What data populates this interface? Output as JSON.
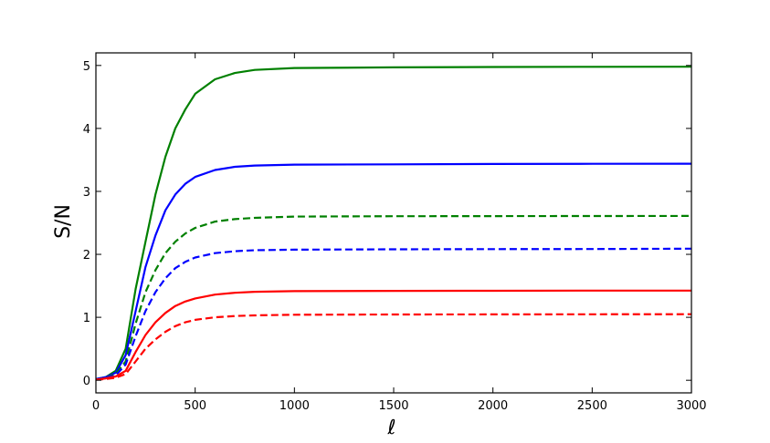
{
  "chart_data": {
    "type": "line",
    "title": "",
    "xlabel": "ℓ",
    "ylabel": "S/N",
    "xlim": [
      0,
      3000
    ],
    "ylim": [
      -0.2,
      5.2
    ],
    "xticks": [
      0,
      500,
      1000,
      1500,
      2000,
      2500,
      3000
    ],
    "yticks": [
      0,
      1,
      2,
      3,
      4,
      5
    ],
    "grid": false,
    "legend": "none",
    "series": [
      {
        "color": "#008000",
        "style": "solid",
        "x": [
          0,
          50,
          100,
          150,
          200,
          250,
          300,
          350,
          400,
          450,
          500,
          600,
          700,
          800,
          1000,
          1500,
          2000,
          2500,
          3000
        ],
        "y": [
          0.02,
          0.05,
          0.15,
          0.5,
          1.45,
          2.2,
          2.95,
          3.55,
          4.0,
          4.3,
          4.55,
          4.78,
          4.88,
          4.93,
          4.96,
          4.97,
          4.975,
          4.978,
          4.98
        ]
      },
      {
        "color": "#0000ff",
        "style": "solid",
        "x": [
          0,
          50,
          100,
          150,
          200,
          250,
          300,
          350,
          400,
          450,
          500,
          600,
          700,
          800,
          1000,
          1500,
          2000,
          2500,
          3000
        ],
        "y": [
          0.02,
          0.05,
          0.12,
          0.4,
          1.1,
          1.8,
          2.3,
          2.7,
          2.95,
          3.12,
          3.23,
          3.34,
          3.39,
          3.41,
          3.425,
          3.43,
          3.435,
          3.438,
          3.44
        ]
      },
      {
        "color": "#008000",
        "style": "dashed",
        "x": [
          0,
          50,
          100,
          150,
          200,
          250,
          300,
          350,
          400,
          450,
          500,
          600,
          700,
          800,
          1000,
          1500,
          2000,
          2500,
          3000
        ],
        "y": [
          0.02,
          0.04,
          0.1,
          0.3,
          0.9,
          1.4,
          1.75,
          2.02,
          2.2,
          2.33,
          2.42,
          2.52,
          2.56,
          2.58,
          2.6,
          2.605,
          2.607,
          2.608,
          2.61
        ]
      },
      {
        "color": "#0000ff",
        "style": "dashed",
        "x": [
          0,
          50,
          100,
          150,
          200,
          250,
          300,
          350,
          400,
          450,
          500,
          600,
          700,
          800,
          1000,
          1500,
          2000,
          2500,
          3000
        ],
        "y": [
          0.02,
          0.04,
          0.08,
          0.25,
          0.7,
          1.1,
          1.4,
          1.62,
          1.78,
          1.88,
          1.95,
          2.02,
          2.05,
          2.065,
          2.075,
          2.08,
          2.083,
          2.085,
          2.09
        ]
      },
      {
        "color": "#ff0000",
        "style": "solid",
        "x": [
          0,
          50,
          100,
          150,
          200,
          250,
          300,
          350,
          400,
          450,
          500,
          600,
          700,
          800,
          1000,
          1500,
          2000,
          2500,
          3000
        ],
        "y": [
          0.01,
          0.03,
          0.06,
          0.15,
          0.45,
          0.72,
          0.92,
          1.07,
          1.18,
          1.25,
          1.3,
          1.36,
          1.39,
          1.405,
          1.415,
          1.42,
          1.422,
          1.424,
          1.425
        ]
      },
      {
        "color": "#ff0000",
        "style": "dashed",
        "x": [
          0,
          50,
          100,
          150,
          200,
          250,
          300,
          350,
          400,
          450,
          500,
          600,
          700,
          800,
          1000,
          1500,
          2000,
          2500,
          3000
        ],
        "y": [
          0.01,
          0.02,
          0.04,
          0.1,
          0.3,
          0.5,
          0.65,
          0.77,
          0.86,
          0.92,
          0.96,
          1.0,
          1.02,
          1.03,
          1.04,
          1.045,
          1.047,
          1.048,
          1.05
        ]
      }
    ]
  }
}
